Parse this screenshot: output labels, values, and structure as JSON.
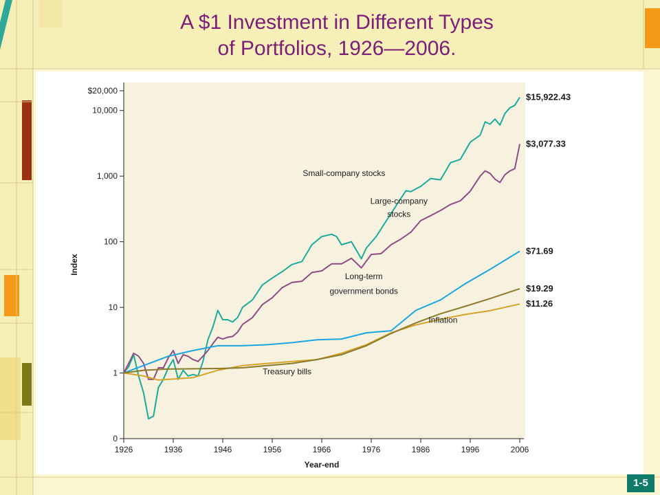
{
  "slide": {
    "title_line1": "A $1 Investment in Different Types",
    "title_line2": "of Portfolios, 1926—2006.",
    "page_number": "1-5",
    "colors": {
      "background": "#fbf6d2",
      "title": "#7a1e78",
      "badge": "#0f7a68"
    }
  },
  "chart_data": {
    "type": "line",
    "title": "A $1 Investment in Different Types of Portfolios, 1926—2006.",
    "xlabel": "Year-end",
    "ylabel": "Index",
    "y_scale": "log",
    "ylim": [
      0.1,
      20000
    ],
    "xlim": [
      1926,
      2006
    ],
    "x_ticks": [
      "1926",
      "1936",
      "1946",
      "1956",
      "1966",
      "1976",
      "1986",
      "1996",
      "2006"
    ],
    "y_ticks": [
      {
        "value": 20000,
        "label": "$20,000"
      },
      {
        "value": 10000,
        "label": "10,000"
      },
      {
        "value": 1000,
        "label": "1,000"
      },
      {
        "value": 100,
        "label": "100"
      },
      {
        "value": 10,
        "label": "10"
      },
      {
        "value": 1,
        "label": "1"
      },
      {
        "value": 0.1,
        "label": "0"
      }
    ],
    "grid": false,
    "legend": "labels placed inline next to each series",
    "series": [
      {
        "name": "Small-company stocks",
        "color": "#1ea99a",
        "end_label": "$15,922.43",
        "x": [
          1926,
          1927,
          1928,
          1929,
          1930,
          1931,
          1932,
          1933,
          1934,
          1935,
          1936,
          1937,
          1938,
          1939,
          1940,
          1941,
          1942,
          1943,
          1944,
          1945,
          1946,
          1947,
          1948,
          1949,
          1950,
          1952,
          1954,
          1956,
          1958,
          1960,
          1962,
          1964,
          1966,
          1968,
          1969,
          1970,
          1972,
          1974,
          1975,
          1977,
          1980,
          1983,
          1984,
          1986,
          1988,
          1990,
          1992,
          1994,
          1996,
          1998,
          1999,
          2000,
          2001,
          2002,
          2003,
          2004,
          2005,
          2006
        ],
        "y": [
          1.0,
          1.25,
          1.9,
          0.9,
          0.5,
          0.2,
          0.22,
          0.6,
          0.8,
          1.2,
          1.6,
          0.8,
          1.1,
          0.9,
          0.95,
          0.9,
          1.5,
          3.2,
          5,
          9,
          6.5,
          6.5,
          6,
          7,
          10,
          13,
          22,
          28,
          35,
          45,
          50,
          90,
          120,
          130,
          120,
          90,
          100,
          55,
          80,
          120,
          270,
          600,
          580,
          700,
          920,
          880,
          1600,
          1800,
          3300,
          4200,
          6700,
          6200,
          7400,
          6000,
          9000,
          11000,
          12000,
          15922.43
        ]
      },
      {
        "name": "Large-company stocks",
        "color": "#8d4d84",
        "end_label": "$3,077.33",
        "x": [
          1926,
          1927,
          1928,
          1929,
          1930,
          1931,
          1932,
          1933,
          1934,
          1935,
          1936,
          1937,
          1938,
          1939,
          1940,
          1941,
          1942,
          1943,
          1944,
          1945,
          1946,
          1947,
          1948,
          1949,
          1950,
          1952,
          1954,
          1956,
          1958,
          1960,
          1962,
          1964,
          1966,
          1968,
          1970,
          1972,
          1974,
          1976,
          1978,
          1980,
          1982,
          1984,
          1986,
          1988,
          1990,
          1992,
          1994,
          1996,
          1998,
          1999,
          2000,
          2001,
          2002,
          2003,
          2004,
          2005,
          2006
        ],
        "y": [
          1.0,
          1.4,
          2.0,
          1.8,
          1.4,
          0.8,
          0.8,
          1.2,
          1.2,
          1.7,
          2.2,
          1.4,
          1.9,
          1.8,
          1.6,
          1.5,
          1.8,
          2.2,
          2.8,
          3.5,
          3.3,
          3.5,
          3.6,
          4.2,
          5.5,
          7,
          11,
          14,
          20,
          24,
          25,
          34,
          36,
          46,
          46,
          56,
          40,
          64,
          66,
          90,
          110,
          140,
          210,
          250,
          300,
          370,
          420,
          590,
          1000,
          1200,
          1100,
          900,
          800,
          1050,
          1200,
          1300,
          3077.33
        ]
      },
      {
        "name": "Long-term government bonds",
        "color": "#1aa4e0",
        "end_label": "$71.69",
        "x": [
          1926,
          1930,
          1935,
          1940,
          1945,
          1950,
          1955,
          1960,
          1965,
          1970,
          1975,
          1980,
          1985,
          1990,
          1995,
          2000,
          2006
        ],
        "y": [
          1.0,
          1.3,
          1.8,
          2.2,
          2.6,
          2.6,
          2.7,
          2.9,
          3.2,
          3.3,
          4.1,
          4.4,
          9,
          13,
          23,
          38,
          71.69
        ]
      },
      {
        "name": "Inflation",
        "color": "#d6a32b",
        "end_label": "$11.26",
        "x": [
          1926,
          1930,
          1933,
          1940,
          1945,
          1950,
          1955,
          1960,
          1965,
          1970,
          1975,
          1980,
          1985,
          1990,
          1995,
          2000,
          2006
        ],
        "y": [
          1.0,
          0.9,
          0.78,
          0.85,
          1.1,
          1.3,
          1.4,
          1.5,
          1.6,
          2.0,
          2.7,
          4.1,
          5.4,
          6.6,
          7.8,
          8.9,
          11.26
        ]
      },
      {
        "name": "Treasury bills",
        "color": "#8a7a2a",
        "end_label": "$19.29",
        "x": [
          1926,
          1930,
          1935,
          1940,
          1945,
          1950,
          1955,
          1960,
          1965,
          1970,
          1975,
          1980,
          1985,
          1990,
          1995,
          2000,
          2006
        ],
        "y": [
          1.0,
          1.1,
          1.15,
          1.16,
          1.17,
          1.2,
          1.3,
          1.4,
          1.6,
          1.9,
          2.6,
          4.0,
          5.8,
          8.0,
          10.4,
          13.6,
          19.29
        ]
      }
    ],
    "annotations": [
      {
        "text": "Small-company stocks",
        "series": "Small-company stocks"
      },
      {
        "text": "Large-company",
        "series": "Large-company stocks"
      },
      {
        "text": "stocks",
        "series": "Large-company stocks"
      },
      {
        "text": "Long-term",
        "series": "Long-term government bonds"
      },
      {
        "text": "government bonds",
        "series": "Long-term government bonds"
      },
      {
        "text": "Inflation",
        "series": "Inflation"
      },
      {
        "text": "Treasury bills",
        "series": "Treasury bills"
      }
    ]
  }
}
